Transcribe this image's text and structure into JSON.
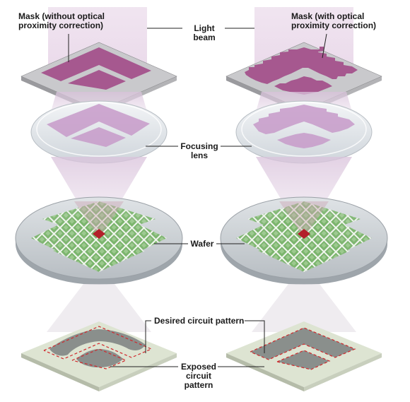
{
  "labels": {
    "mask_left": "Mask (without optical\nproximity correction)",
    "mask_right": "Mask (with optical\nproximity correction)",
    "light_beam": "Light\nbeam",
    "focusing_lens": "Focusing\nlens",
    "wafer": "Wafer",
    "desired_pattern": "Desired circuit pattern",
    "exposed_pattern": "Exposed\ncircuit\npattern"
  },
  "colors": {
    "beam": "#e2cfe2",
    "mask_pattern": "#a6588f",
    "lens": "#dfe3e8",
    "lens_pattern": "#c79ac9",
    "wafer_body": "#cdd2d6",
    "die_green": "#7bb56c",
    "target_die": "#b3202a",
    "plate": "#dde4d2",
    "exposed_pattern": "#8a8f8c",
    "desired_outline": "#d0282c",
    "leader_line": "#222222"
  }
}
